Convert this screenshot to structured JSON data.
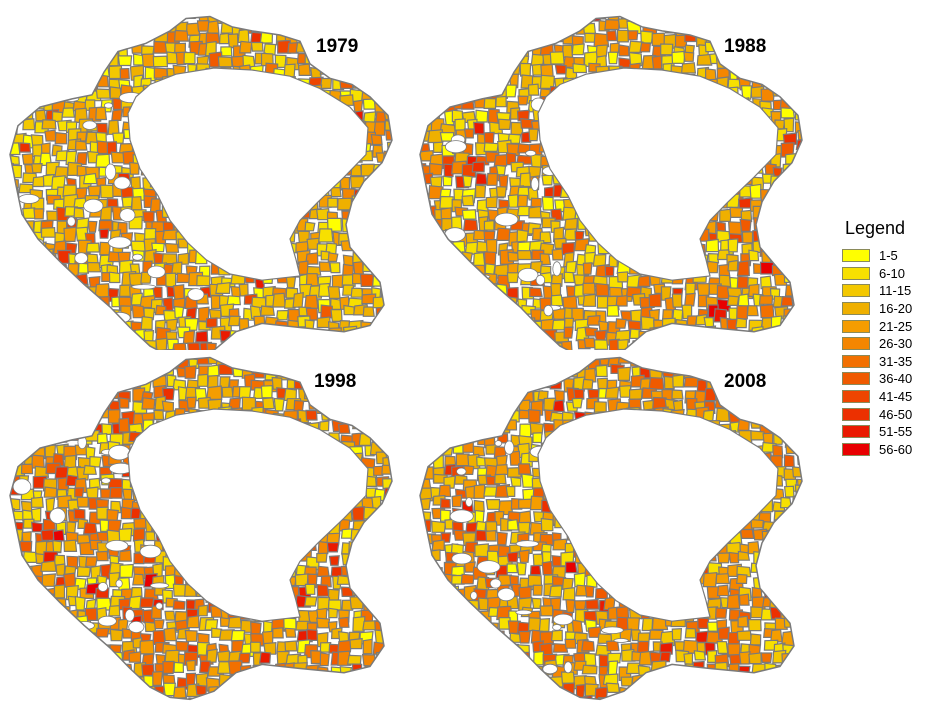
{
  "maps": [
    {
      "year": "1979",
      "seed": 11,
      "mix": [
        0.08,
        0.16,
        0.18,
        0.18,
        0.14,
        0.1,
        0.07,
        0.04,
        0.03,
        0.015,
        0.005,
        0.0
      ]
    },
    {
      "year": "1988",
      "seed": 23,
      "mix": [
        0.05,
        0.12,
        0.16,
        0.17,
        0.15,
        0.12,
        0.09,
        0.06,
        0.04,
        0.02,
        0.01,
        0.01
      ]
    },
    {
      "year": "1998",
      "seed": 37,
      "mix": [
        0.04,
        0.1,
        0.15,
        0.16,
        0.15,
        0.13,
        0.1,
        0.07,
        0.05,
        0.03,
        0.015,
        0.005
      ]
    },
    {
      "year": "2008",
      "seed": 53,
      "mix": [
        0.03,
        0.08,
        0.14,
        0.17,
        0.17,
        0.14,
        0.11,
        0.07,
        0.05,
        0.02,
        0.01,
        0.01
      ]
    }
  ],
  "legend": {
    "title": "Legend",
    "items": [
      {
        "label": "1-5",
        "color": "#ffff00"
      },
      {
        "label": "6-10",
        "color": "#f7e000"
      },
      {
        "label": "11-15",
        "color": "#f3c800"
      },
      {
        "label": "16-20",
        "color": "#efb000"
      },
      {
        "label": "21-25",
        "color": "#f59d00"
      },
      {
        "label": "26-30",
        "color": "#f48600"
      },
      {
        "label": "31-35",
        "color": "#f27000"
      },
      {
        "label": "36-40",
        "color": "#f05a00"
      },
      {
        "label": "41-45",
        "color": "#ee4500"
      },
      {
        "label": "46-50",
        "color": "#ec3000"
      },
      {
        "label": "51-55",
        "color": "#ea1a00"
      },
      {
        "label": "56-60",
        "color": "#e80000"
      }
    ]
  },
  "style": {
    "edge_color": "#7a7a7a",
    "background": "#ffffff"
  }
}
